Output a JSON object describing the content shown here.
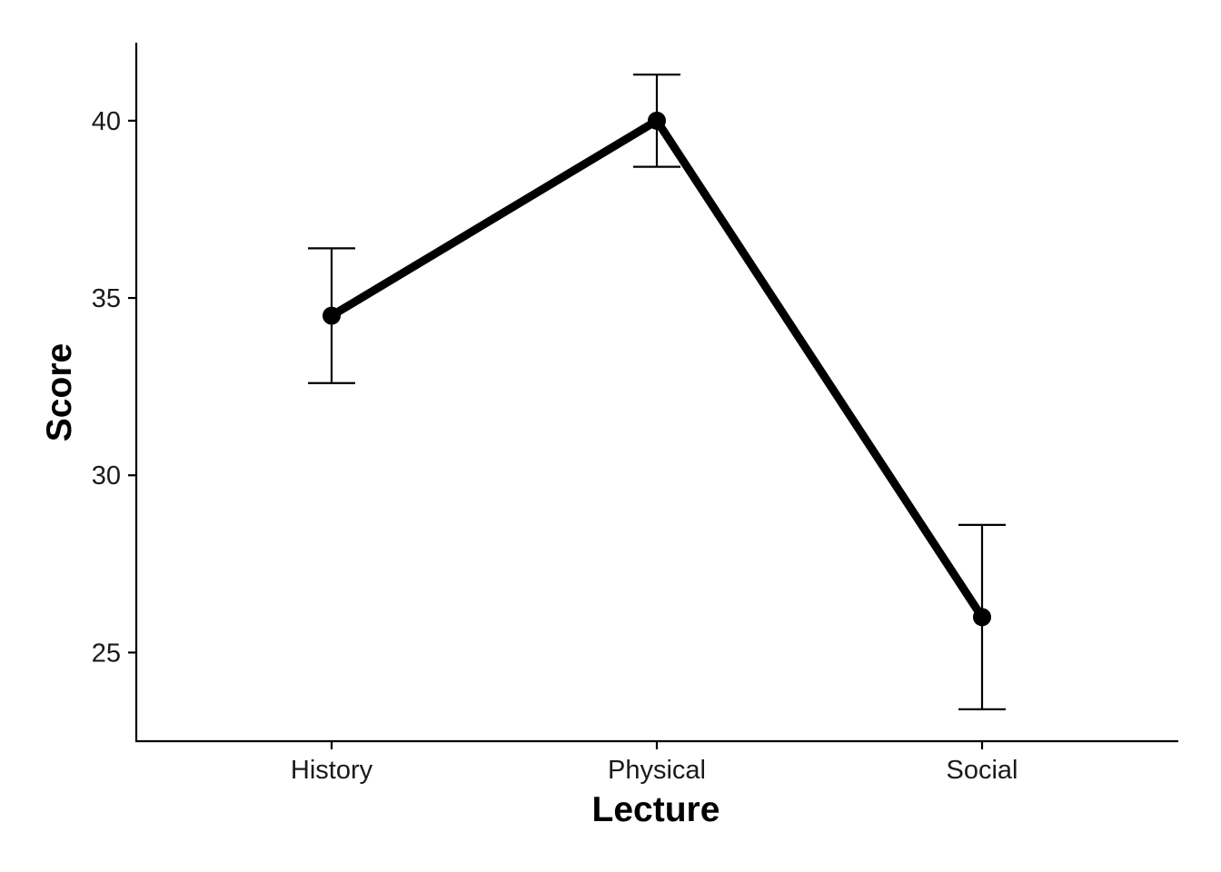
{
  "chart_data": {
    "type": "line",
    "title": "",
    "xlabel": "Lecture",
    "ylabel": "Score",
    "categories": [
      "History",
      "Physical",
      "Social"
    ],
    "series": [
      {
        "values": [
          34.5,
          40.0,
          26.0
        ],
        "error_lower": [
          32.6,
          38.7,
          23.4
        ],
        "error_upper": [
          36.4,
          41.3,
          28.6
        ]
      }
    ],
    "ylim": [
      22.5,
      42.2
    ],
    "yticks": [
      25,
      30,
      35,
      40
    ],
    "ytick_labels": [
      "25",
      "30",
      "35",
      "40"
    ],
    "grid": false,
    "legend": "none",
    "colors": {
      "line": "#000000",
      "axis": "#000000",
      "text": "#1a1a1a"
    }
  }
}
